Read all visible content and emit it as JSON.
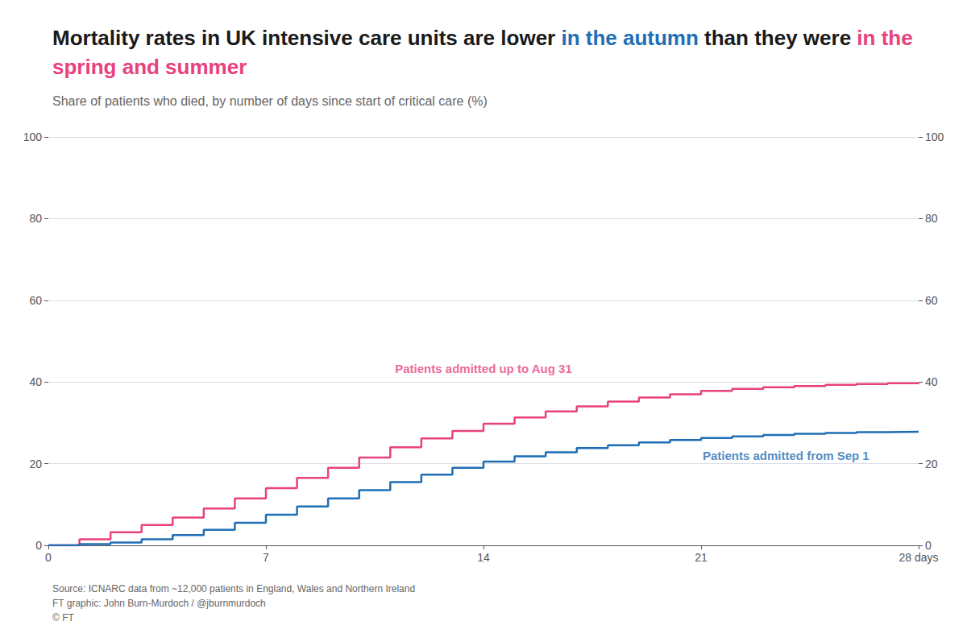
{
  "chart_data": {
    "type": "step",
    "title": [
      {
        "text": "Mortality rates in UK intensive care units are lower ",
        "color": "#1a1a1a"
      },
      {
        "text": "in the autumn",
        "color": "#1f6eb5"
      },
      {
        "text": " than they were ",
        "color": "#1a1a1a"
      },
      {
        "text": "in the spring and summer",
        "color": "#e8417e"
      }
    ],
    "subtitle": "Share of patients who died, by number of days since start of critical care (%)",
    "source": [
      "Source: ICNARC data from ~12,000 patients in England, Wales and Northern Ireland",
      "FT graphic: John Burn-Murdoch / @jburnmurdoch",
      "© FT"
    ],
    "x": [
      0,
      1,
      2,
      3,
      4,
      5,
      6,
      7,
      8,
      9,
      10,
      11,
      12,
      13,
      14,
      15,
      16,
      17,
      18,
      19,
      20,
      21,
      22,
      23,
      24,
      25,
      26,
      27,
      28
    ],
    "series": [
      {
        "color": "#e8417e",
        "values": [
          0,
          1.5,
          3.2,
          5.0,
          6.8,
          9.0,
          11.5,
          14.0,
          16.5,
          19.0,
          21.5,
          24.0,
          26.2,
          28.0,
          29.8,
          31.3,
          32.8,
          34.0,
          35.2,
          36.2,
          37.0,
          37.8,
          38.3,
          38.7,
          39.0,
          39.3,
          39.5,
          39.7,
          39.9
        ]
      },
      {
        "color": "#1f6eb5",
        "values": [
          0,
          0.3,
          0.7,
          1.5,
          2.5,
          3.8,
          5.5,
          7.5,
          9.5,
          11.5,
          13.5,
          15.5,
          17.3,
          19.0,
          20.5,
          21.8,
          22.8,
          23.8,
          24.5,
          25.2,
          25.8,
          26.3,
          26.7,
          27.0,
          27.3,
          27.5,
          27.7,
          27.8,
          27.9
        ]
      }
    ],
    "annotations": [
      {
        "text": "Patients admitted up to Aug 31",
        "x": 14.0,
        "y": 41.5,
        "color": "#e8417e"
      },
      {
        "text": "Patients admitted from Sep 1",
        "x": 21.0,
        "y": 22.0,
        "color": "#1f6eb5"
      }
    ],
    "xlim": [
      0,
      28
    ],
    "xticks": [
      0,
      7,
      14,
      21,
      {
        "value": 28,
        "label": "28 days"
      }
    ],
    "ylim": [
      0,
      100
    ],
    "yticks": [
      0,
      20,
      40,
      60,
      80,
      100
    ],
    "y2lim": [
      0,
      100
    ],
    "y2ticks": [
      0,
      20,
      40,
      60,
      80,
      100
    ],
    "grid": true
  }
}
